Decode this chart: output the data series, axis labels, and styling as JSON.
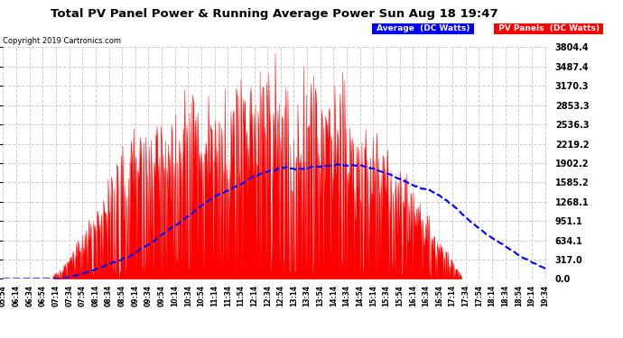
{
  "title": "Total PV Panel Power & Running Average Power Sun Aug 18 19:47",
  "copyright": "Copyright 2019 Cartronics.com",
  "legend_avg": "Average  (DC Watts)",
  "legend_pv": "PV Panels  (DC Watts)",
  "ymax": 3804.4,
  "yticks": [
    0.0,
    317.0,
    634.1,
    951.1,
    1268.1,
    1585.2,
    1902.2,
    2219.2,
    2536.3,
    2853.3,
    3170.3,
    3487.4,
    3804.4
  ],
  "bg_color": "#ffffff",
  "pv_color": "#ff0000",
  "avg_color": "#0000ff",
  "grid_color": "#cccccc",
  "title_color": "#000000",
  "fig_bg": "#ffffff",
  "legend_avg_bg": "#0000ff",
  "legend_pv_bg": "#ff0000"
}
